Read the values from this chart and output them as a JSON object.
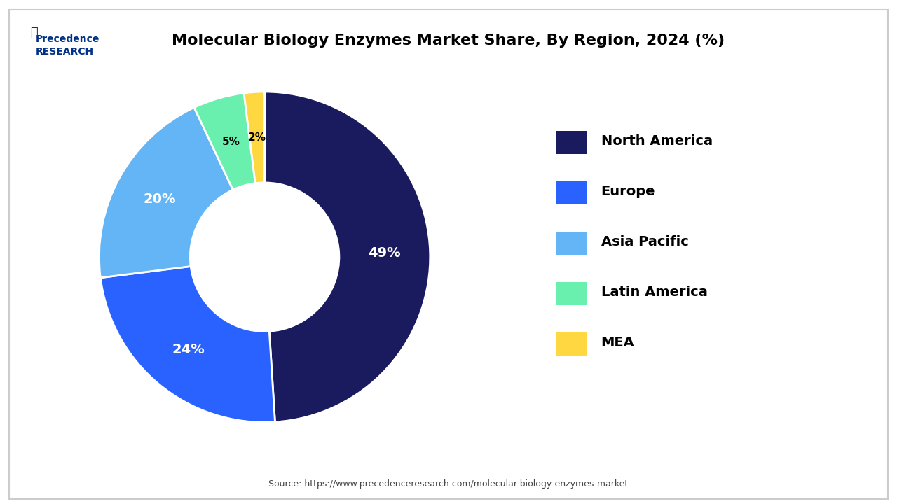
{
  "title": "Molecular Biology Enzymes Market Share, By Region, 2024 (%)",
  "labels": [
    "North America",
    "Europe",
    "Asia Pacific",
    "Latin America",
    "MEA"
  ],
  "values": [
    49,
    24,
    20,
    5,
    2
  ],
  "colors": [
    "#1a1a5e",
    "#2962ff",
    "#64b5f6",
    "#69f0ae",
    "#ffd740"
  ],
  "pct_labels": [
    "49%",
    "24%",
    "20%",
    "5%",
    "2%"
  ],
  "legend_colors": [
    "#1a1a5e",
    "#2962ff",
    "#64b5f6",
    "#69f0ae",
    "#ffd740"
  ],
  "source_text": "Source: https://www.precedenceresearch.com/molecular-biology-enzymes-market",
  "background_color": "#ffffff",
  "wedge_edge_color": "#ffffff",
  "donut_ratio": 0.55,
  "start_angle": 90
}
